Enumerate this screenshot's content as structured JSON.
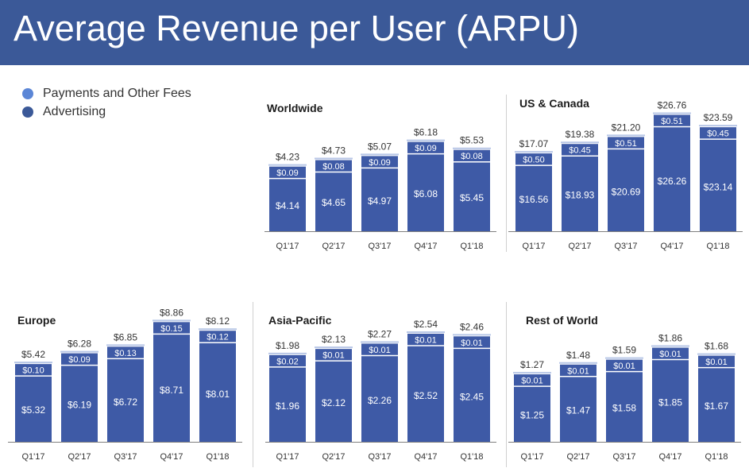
{
  "title": "Average Revenue per User (ARPU)",
  "colors": {
    "header": "#3b5998",
    "advertising": "#3e5aa6",
    "payments": "#6f92d9",
    "axis": "#7f7f7f",
    "text": "#333333"
  },
  "legend": [
    {
      "label": "Payments and Other Fees",
      "color": "#5b86d6"
    },
    {
      "label": "Advertising",
      "color": "#3b5998"
    }
  ],
  "chart_data": [
    {
      "type": "bar",
      "stacked": true,
      "title": "Worldwide",
      "categories": [
        "Q1'17",
        "Q2'17",
        "Q3'17",
        "Q4'17",
        "Q1'18"
      ],
      "series": [
        {
          "name": "Advertising",
          "values": [
            "$4.14",
            "$4.65",
            "$4.97",
            "$6.08",
            "$5.45"
          ]
        },
        {
          "name": "Payments and Other Fees",
          "values": [
            "$0.09",
            "$0.08",
            "$0.09",
            "$0.09",
            "$0.08"
          ]
        }
      ],
      "totals": [
        "$4.23",
        "$4.73",
        "$5.07",
        "$6.18",
        "$5.53"
      ]
    },
    {
      "type": "bar",
      "stacked": true,
      "title": "US & Canada",
      "categories": [
        "Q1'17",
        "Q2'17",
        "Q3'17",
        "Q4'17",
        "Q1'18"
      ],
      "series": [
        {
          "name": "Advertising",
          "values": [
            "$16.56",
            "$18.93",
            "$20.69",
            "$26.26",
            "$23.14"
          ]
        },
        {
          "name": "Payments and Other Fees",
          "values": [
            "$0.50",
            "$0.45",
            "$0.51",
            "$0.51",
            "$0.45"
          ]
        }
      ],
      "totals": [
        "$17.07",
        "$19.38",
        "$21.20",
        "$26.76",
        "$23.59"
      ]
    },
    {
      "type": "bar",
      "stacked": true,
      "title": "Europe",
      "categories": [
        "Q1'17",
        "Q2'17",
        "Q3'17",
        "Q4'17",
        "Q1'18"
      ],
      "series": [
        {
          "name": "Advertising",
          "values": [
            "$5.32",
            "$6.19",
            "$6.72",
            "$8.71",
            "$8.01"
          ]
        },
        {
          "name": "Payments and Other Fees",
          "values": [
            "$0.10",
            "$0.09",
            "$0.13",
            "$0.15",
            "$0.12"
          ]
        }
      ],
      "totals": [
        "$5.42",
        "$6.28",
        "$6.85",
        "$8.86",
        "$8.12"
      ]
    },
    {
      "type": "bar",
      "stacked": true,
      "title": "Asia-Pacific",
      "categories": [
        "Q1'17",
        "Q2'17",
        "Q3'17",
        "Q4'17",
        "Q1'18"
      ],
      "series": [
        {
          "name": "Advertising",
          "values": [
            "$1.96",
            "$2.12",
            "$2.26",
            "$2.52",
            "$2.45"
          ]
        },
        {
          "name": "Payments and Other Fees",
          "values": [
            "$0.02",
            "$0.01",
            "$0.01",
            "$0.01",
            "$0.01"
          ]
        }
      ],
      "totals": [
        "$1.98",
        "$2.13",
        "$2.27",
        "$2.54",
        "$2.46"
      ]
    },
    {
      "type": "bar",
      "stacked": true,
      "title": "Rest of World",
      "categories": [
        "Q1'17",
        "Q2'17",
        "Q3'17",
        "Q4'17",
        "Q1'18"
      ],
      "series": [
        {
          "name": "Advertising",
          "values": [
            "$1.25",
            "$1.47",
            "$1.58",
            "$1.85",
            "$1.67"
          ]
        },
        {
          "name": "Payments and Other Fees",
          "values": [
            "$0.01",
            "$0.01",
            "$0.01",
            "$0.01",
            "$0.01"
          ]
        }
      ],
      "totals": [
        "$1.27",
        "$1.48",
        "$1.59",
        "$1.86",
        "$1.68"
      ]
    }
  ]
}
